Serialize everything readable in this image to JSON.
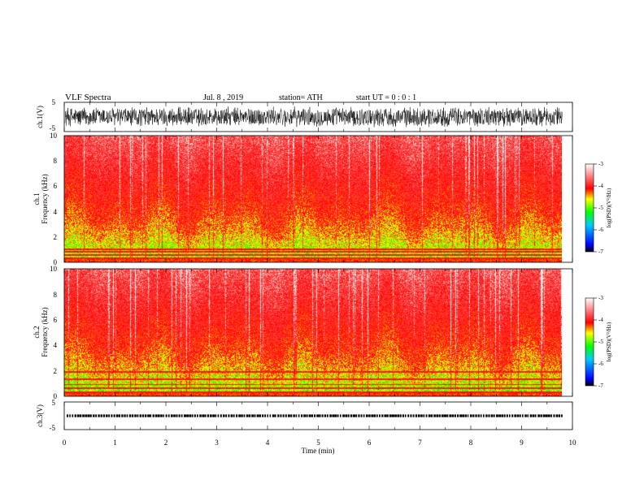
{
  "header": {
    "title": "VLF  Spectra",
    "date": "Jul.  8  , 2019",
    "station": "station= ATH",
    "start": "start  UT  =    0 : 0  : 1"
  },
  "chart_data": [
    {
      "type": "line",
      "panel": "ch1-waveform",
      "ylabel": "ch.1(V)",
      "ylim": [
        -5,
        5
      ],
      "yticks": [
        {
          "v": 5,
          "label": "5"
        },
        {
          "v": -5,
          "label": "-5"
        }
      ],
      "xlim": [
        0,
        10
      ],
      "data_end_min": 9.8,
      "series": [
        {
          "color": "#000000",
          "envelope": [
            -3.6,
            3.6
          ]
        }
      ]
    },
    {
      "type": "heatmap",
      "panel": "ch1-spectrogram",
      "ylabel_top": "ch.1",
      "ylabel": "Frequency  (kHz)",
      "ylim": [
        0,
        10
      ],
      "yticks": [
        "0",
        "2",
        "4",
        "6",
        "8",
        "10"
      ],
      "xlim": [
        0,
        10
      ],
      "data_end_min": 9.8,
      "colorbar": {
        "label": "log(PSD)(V²/Hz)",
        "range": [
          -7,
          -3
        ],
        "ticks": [
          "-3",
          "-4",
          "-5",
          "-6",
          "-7"
        ],
        "colors": [
          "#000000",
          "#0000ff",
          "#00c8ff",
          "#00ff00",
          "#ffff00",
          "#ff0000",
          "#ffffff"
        ]
      },
      "lines_khz": [
        0.3,
        0.55,
        0.8,
        1.0
      ]
    },
    {
      "type": "heatmap",
      "panel": "ch2-spectrogram",
      "ylabel_top": "ch.2",
      "ylabel": "Frequency  (kHz)",
      "ylim": [
        0,
        10
      ],
      "yticks": [
        "0",
        "2",
        "4",
        "6",
        "8",
        "10"
      ],
      "xlim": [
        0,
        10
      ],
      "data_end_min": 9.8,
      "colorbar": {
        "label": "log(PSD)(V²/Hz)",
        "range": [
          -7,
          -3
        ],
        "ticks": [
          "-3",
          "-4",
          "-5",
          "-6",
          "-7"
        ],
        "colors": [
          "#000000",
          "#0000ff",
          "#00c8ff",
          "#00ff00",
          "#ffff00",
          "#ff0000",
          "#ffffff"
        ]
      },
      "lines_khz": [
        0.3,
        0.6,
        0.9,
        1.3,
        1.9
      ]
    },
    {
      "type": "line",
      "panel": "ch3-waveform",
      "ylabel": "ch.3(V)",
      "ylim": [
        -5,
        5
      ],
      "yticks": [
        {
          "v": 5,
          "label": "5"
        },
        {
          "v": -5,
          "label": "-5"
        }
      ],
      "xlim": [
        0,
        10
      ],
      "data_end_min": 9.8,
      "series": [
        {
          "color": "#000000",
          "level": 0,
          "envelope": [
            -0.3,
            0.3
          ]
        }
      ],
      "xlabel": "Time  (min)",
      "xticks": [
        "0",
        "1",
        "2",
        "3",
        "4",
        "5",
        "6",
        "7",
        "8",
        "9",
        "10"
      ]
    }
  ]
}
